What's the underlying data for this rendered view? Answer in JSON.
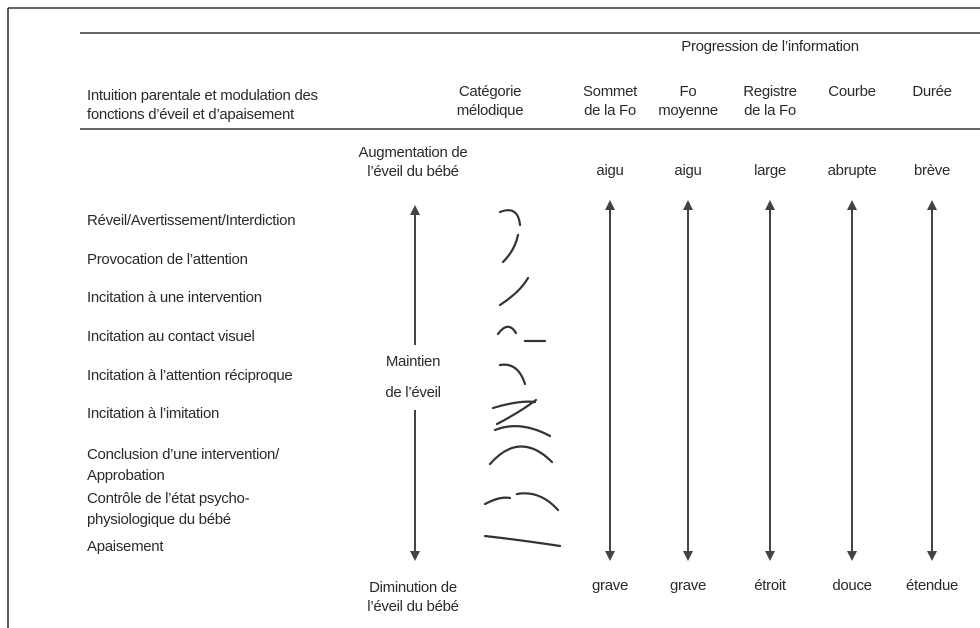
{
  "header": {
    "title": "Progression de l’information",
    "row_label": [
      "Intuition parentale et modulation des",
      "fonctions d’éveil et d’apaisement"
    ]
  },
  "columns": [
    [
      "Catégorie",
      "mélodique"
    ],
    [
      "Sommet",
      "de la Fo"
    ],
    [
      "Fo",
      "moyenne"
    ],
    [
      "Registre",
      "de la Fo"
    ],
    [
      "Courbe"
    ],
    [
      "Durée"
    ]
  ],
  "arousal": {
    "top": [
      "Augmentation de",
      "l’éveil du bébé"
    ],
    "middle": [
      "Maintien",
      "de l’éveil"
    ],
    "bottom": [
      "Diminution de",
      "l’éveil du bébé"
    ]
  },
  "rows": [
    [
      "Réveil/Avertissement/Interdiction"
    ],
    [
      "Provocation de l’attention"
    ],
    [
      "Incitation à une intervention"
    ],
    [
      "Incitation au contact visuel"
    ],
    [
      "Incitation à l’attention réciproque"
    ],
    [
      "Incitation à l’imitation"
    ],
    [
      "Conclusion d’une intervention/",
      "Approbation"
    ],
    [
      "Contrôle de l’état psycho-",
      "physiologique du bébé"
    ],
    [
      "Apaisement"
    ]
  ],
  "scale": {
    "top": [
      "aigu",
      "aigu",
      "large",
      "abrupte",
      "brève"
    ],
    "bottom": [
      "grave",
      "grave",
      "étroit",
      "douce",
      "étendue"
    ]
  }
}
